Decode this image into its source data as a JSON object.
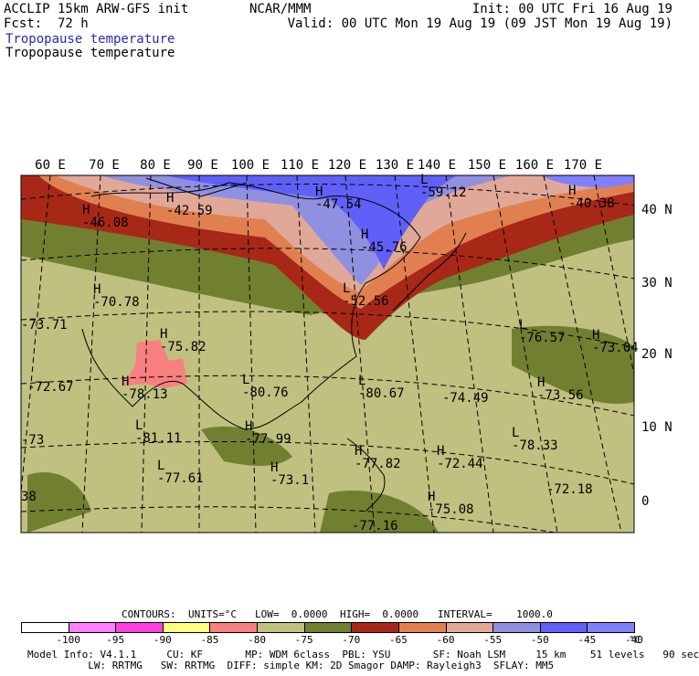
{
  "header": {
    "left_line1": "ACCLIP 15km ARW-GFS init",
    "left_line2": "Fcst:  72 h",
    "center_line1": "NCAR/MMM",
    "right_line1": "Init: 00 UTC Fri 16 Aug 19",
    "right_line2": "Valid: 00 UTC Mon 19 Aug 19 (09 JST Mon 19 Aug 19)",
    "field_line1": "Tropopause temperature",
    "field_line2": "Tropopause temperature"
  },
  "map": {
    "lon_labels": [
      "60 E",
      "70 E",
      "80 E",
      "90 E",
      "100 E",
      "110 E",
      "120 E",
      "130 E",
      "140 E",
      "150 E",
      "160 E",
      "170 E"
    ],
    "lat_labels": [
      "40 N",
      "30 N",
      "20 N",
      "10 N",
      "0"
    ],
    "highs_lows": [
      {
        "letter": "H",
        "value": "-46.08"
      },
      {
        "letter": "H",
        "value": "-42.59"
      },
      {
        "letter": "H",
        "value": "-47.54"
      },
      {
        "letter": "L",
        "value": "-59.12"
      },
      {
        "letter": "H",
        "value": "-40.38"
      },
      {
        "letter": "H",
        "value": "-45.76"
      },
      {
        "letter": "L",
        "value": "-52.56"
      },
      {
        "letter": "H",
        "value": "-70.78"
      },
      {
        "letter": "",
        "value": "-73.71"
      },
      {
        "letter": "H",
        "value": "-75.82"
      },
      {
        "letter": "L",
        "value": "-76.57"
      },
      {
        "letter": "H",
        "value": "-73.04"
      },
      {
        "letter": "",
        "value": "-72.67"
      },
      {
        "letter": "H",
        "value": "-78.13"
      },
      {
        "letter": "L",
        "value": "-80.76"
      },
      {
        "letter": "L",
        "value": "-80.67"
      },
      {
        "letter": "",
        "value": "-74.49"
      },
      {
        "letter": "H",
        "value": "-73.56"
      },
      {
        "letter": "L",
        "value": "-81.11"
      },
      {
        "letter": "",
        "value": "-73"
      },
      {
        "letter": "H",
        "value": "-77.99"
      },
      {
        "letter": "L",
        "value": "-78.33"
      },
      {
        "letter": "L",
        "value": "-77.61"
      },
      {
        "letter": "H",
        "value": "-73.1"
      },
      {
        "letter": "H",
        "value": "-77.82"
      },
      {
        "letter": "H",
        "value": "-72.44"
      },
      {
        "letter": "",
        "value": "-72.18"
      },
      {
        "letter": "H",
        "value": "-75.08"
      },
      {
        "letter": "",
        "value": "-77.16"
      },
      {
        "letter": "",
        "value": "38"
      }
    ]
  },
  "contour_info": {
    "contours": "CONTOURS:",
    "units": "UNITS=°C",
    "low": "LOW=  0.0000",
    "high": "HIGH=  0.0000",
    "interval": "INTERVAL=    1000.0"
  },
  "colorbar": {
    "colors": [
      "#ffffff",
      "#ff80ff",
      "#ff40e0",
      "#ffff80",
      "#f88080",
      "#c0c080",
      "#708030",
      "#a82818",
      "#e08050",
      "#e0a898",
      "#9090e0",
      "#6060f8",
      "#8080ff"
    ],
    "labels": [
      "-100",
      "-95",
      "-90",
      "-85",
      "-80",
      "-75",
      "-70",
      "-65",
      "-60",
      "-55",
      "-50",
      "-45",
      "-40"
    ],
    "unit": "°C"
  },
  "footer": {
    "line1": "Model Info: V4.1.1     CU: KF       MP: WDM 6class  PBL: YSU       SF: Noah LSM     15 km    51 levels   90 sec",
    "line2": "          LW: RRTMG   SW: RRTMG  DIFF: simple KM: 2D Smagor DAMP: Rayleigh3  SFLAY: MM5"
  }
}
